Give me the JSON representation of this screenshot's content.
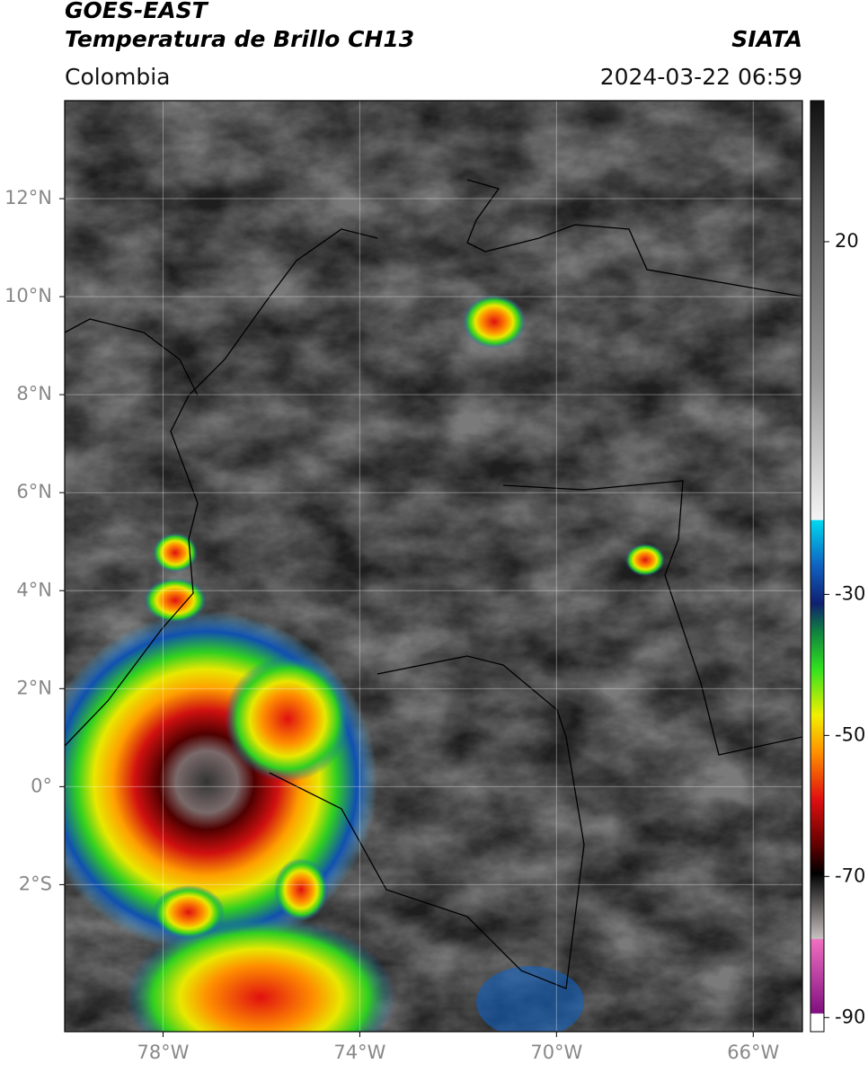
{
  "header": {
    "satellite": "GOES-EAST",
    "product": "Temperatura de Brillo CH13",
    "region": "Colombia",
    "source": "SIATA",
    "datetime": "2024-03-22 06:59"
  },
  "map": {
    "xlim": [
      -80,
      -65
    ],
    "ylim": [
      -5,
      14
    ],
    "xticks": [
      {
        "value": -78,
        "label": "78°W"
      },
      {
        "value": -74,
        "label": "74°W"
      },
      {
        "value": -70,
        "label": "70°W"
      },
      {
        "value": -66,
        "label": "66°W"
      }
    ],
    "yticks": [
      {
        "value": 12,
        "label": "12°N"
      },
      {
        "value": 10,
        "label": "10°N"
      },
      {
        "value": 8,
        "label": "8°N"
      },
      {
        "value": 6,
        "label": "6°N"
      },
      {
        "value": 4,
        "label": "4°N"
      },
      {
        "value": 2,
        "label": "2°N"
      },
      {
        "value": 0,
        "label": "0°"
      },
      {
        "value": -2,
        "label": "2°S"
      }
    ],
    "grid": true
  },
  "colorbar": {
    "lim": [
      -92,
      40
    ],
    "ticks": [
      20,
      -30,
      -50,
      -70,
      -90
    ]
  }
}
